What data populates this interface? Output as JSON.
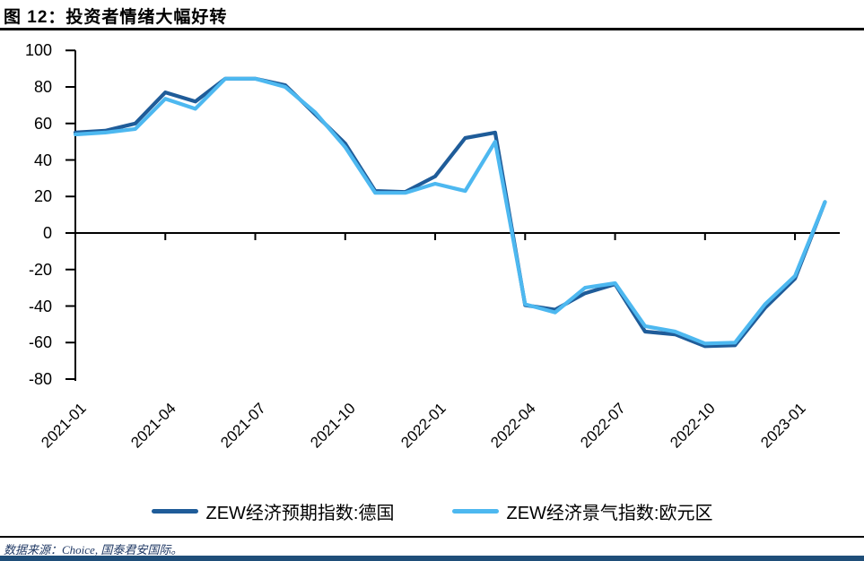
{
  "figure": {
    "title": "图 12：投资者情绪大幅好转"
  },
  "footer": {
    "source": "数据来源：Choice, 国泰君安国际。"
  },
  "colors": {
    "germany": "#1F5C99",
    "eurozone": "#4DB8F0",
    "axis": "#000000",
    "footer_text": "#1F3864",
    "bottom_bar": "#1F4E79"
  },
  "chart_data": {
    "type": "line",
    "x": [
      "2021-01",
      "2021-02",
      "2021-03",
      "2021-04",
      "2021-05",
      "2021-06",
      "2021-07",
      "2021-08",
      "2021-09",
      "2021-10",
      "2021-11",
      "2021-12",
      "2022-01",
      "2022-02",
      "2022-03",
      "2022-04",
      "2022-05",
      "2022-06",
      "2022-07",
      "2022-08",
      "2022-09",
      "2022-10",
      "2022-11",
      "2022-12",
      "2023-01",
      "2023-02"
    ],
    "series": [
      {
        "name": "ZEW经济预期指数:德国",
        "color_key": "germany",
        "values": [
          55,
          56,
          60,
          77,
          72,
          84.5,
          84.5,
          81,
          65,
          49,
          23,
          22.5,
          31,
          52,
          55,
          -39.5,
          -42,
          -33,
          -28,
          -54,
          -55.5,
          -62,
          -61.5,
          -41,
          -25,
          17
        ]
      },
      {
        "name": "ZEW经济景气指数:欧元区",
        "color_key": "eurozone",
        "values": [
          54,
          55,
          57,
          73.5,
          68,
          84.5,
          84.5,
          80,
          66,
          47,
          22,
          22,
          27,
          23,
          50,
          -39,
          -43.5,
          -30,
          -27.5,
          -51,
          -54,
          -60.5,
          -60,
          -39,
          -23.5,
          17
        ]
      }
    ],
    "title": "投资者情绪大幅好转",
    "xlabel": "",
    "ylabel": "",
    "ylim": [
      -80,
      100
    ],
    "ytick_step": 20,
    "ytick_labels": [
      "100",
      "80",
      "60",
      "40",
      "20",
      "0",
      "-20",
      "-40",
      "-60",
      "-80"
    ],
    "xtick_labels": [
      "2021-01",
      "2021-04",
      "2021-07",
      "2021-10",
      "2022-01",
      "2022-04",
      "2022-07",
      "2022-10",
      "2023-01"
    ],
    "xtick_every_n_months": 3,
    "grid": false,
    "legend_position": "bottom",
    "zero_line": true
  }
}
